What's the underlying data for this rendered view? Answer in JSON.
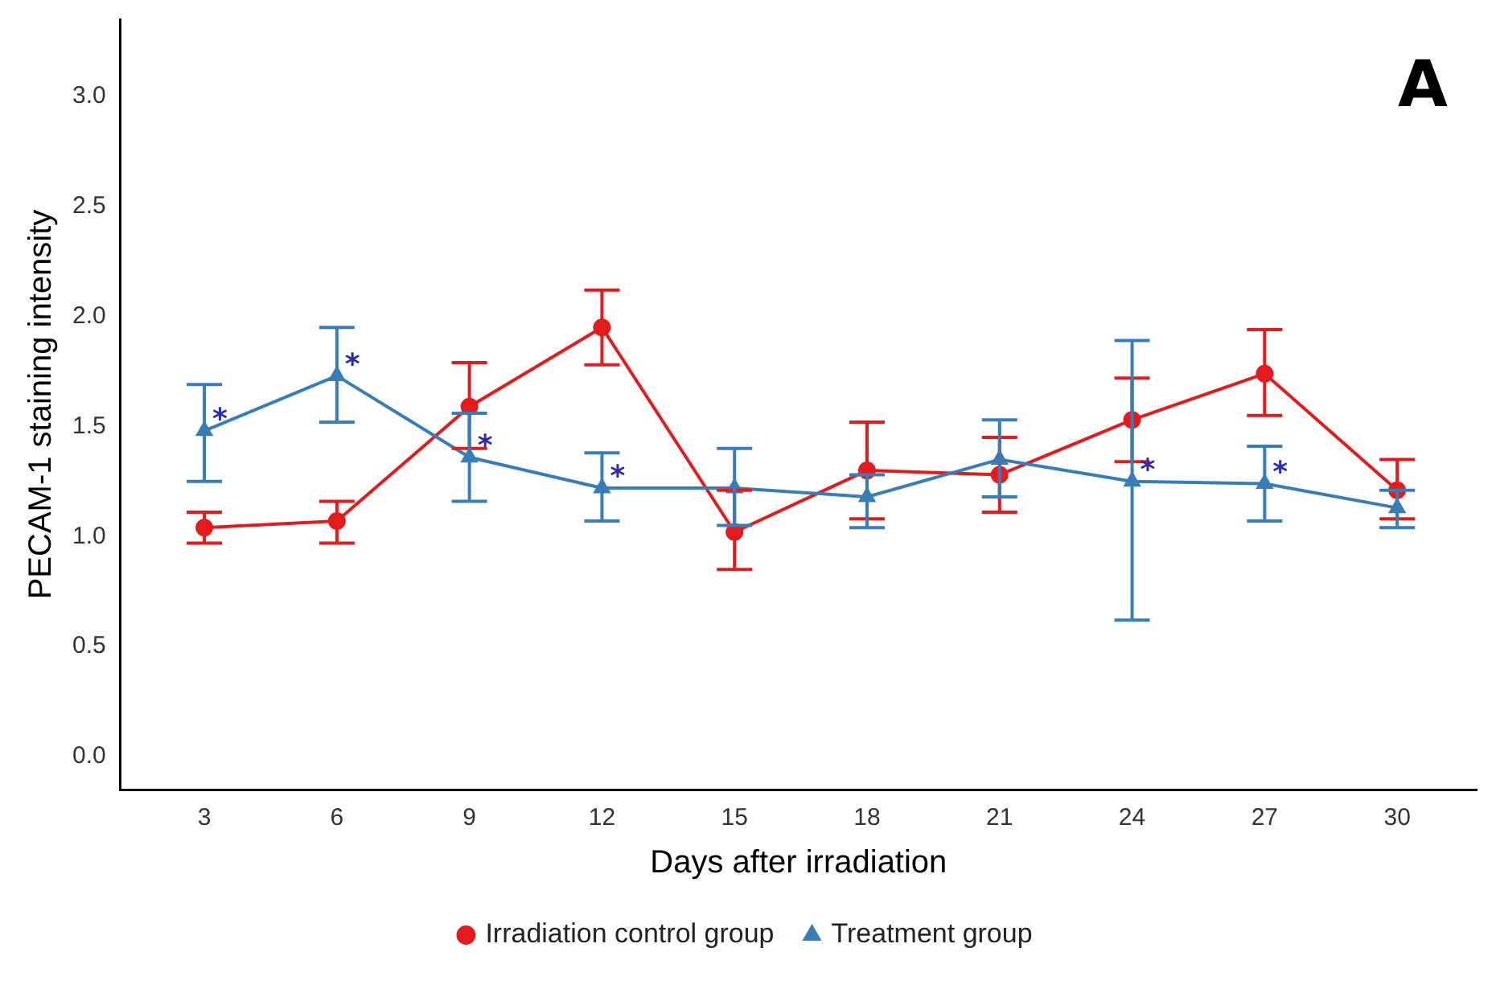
{
  "chart_data": {
    "type": "line",
    "xlabel": "Days after irradiation",
    "ylabel": "PECAM-1 staining intensity",
    "x": [
      3,
      6,
      9,
      12,
      15,
      18,
      21,
      24,
      27,
      30
    ],
    "series": [
      {
        "name": "Irradiation control group",
        "color": "#e41a1c",
        "marker": "circle",
        "values": [
          1.04,
          1.07,
          1.59,
          1.95,
          1.02,
          1.3,
          1.28,
          1.53,
          1.74,
          1.21
        ],
        "errors": [
          [
            0.97,
            1.11
          ],
          [
            0.97,
            1.16
          ],
          [
            1.4,
            1.79
          ],
          [
            1.78,
            2.12
          ],
          [
            0.85,
            1.21
          ],
          [
            1.08,
            1.52
          ],
          [
            1.11,
            1.45
          ],
          [
            1.34,
            1.72
          ],
          [
            1.55,
            1.94
          ],
          [
            1.08,
            1.35
          ]
        ]
      },
      {
        "name": "Treatment group",
        "color": "#377eb8",
        "marker": "triangle",
        "values": [
          1.48,
          1.73,
          1.36,
          1.22,
          1.22,
          1.18,
          1.35,
          1.25,
          1.24,
          1.13
        ],
        "errors": [
          [
            1.25,
            1.69
          ],
          [
            1.52,
            1.95
          ],
          [
            1.16,
            1.56
          ],
          [
            1.07,
            1.38
          ],
          [
            1.05,
            1.4
          ],
          [
            1.04,
            1.28
          ],
          [
            1.18,
            1.53
          ],
          [
            0.62,
            1.89
          ],
          [
            1.07,
            1.41
          ],
          [
            1.04,
            1.21
          ]
        ]
      }
    ],
    "annotations": [
      {
        "text": "*",
        "x": 3,
        "y": 1.48
      },
      {
        "text": "*",
        "x": 6,
        "y": 1.73
      },
      {
        "text": "*",
        "x": 9,
        "y": 1.36
      },
      {
        "text": "*",
        "x": 12,
        "y": 1.22
      },
      {
        "text": "*",
        "x": 24,
        "y": 1.25
      },
      {
        "text": "*",
        "x": 27,
        "y": 1.24
      },
      "A"
    ],
    "xlim": [
      1.1,
      31.8
    ],
    "xticks": [
      3,
      6,
      9,
      12,
      15,
      18,
      21,
      24,
      27,
      30
    ],
    "ylim": [
      -0.15,
      3.35
    ],
    "yticks": [
      {
        "value": 0,
        "label": "0.0"
      },
      0.5,
      {
        "value": 1,
        "label": "1.0"
      },
      1.5,
      {
        "value": 2,
        "label": "2.0"
      },
      2.5,
      {
        "value": 3,
        "label": "3.0"
      }
    ],
    "grid": false,
    "legend": "bottom",
    "line_style": "solid"
  }
}
